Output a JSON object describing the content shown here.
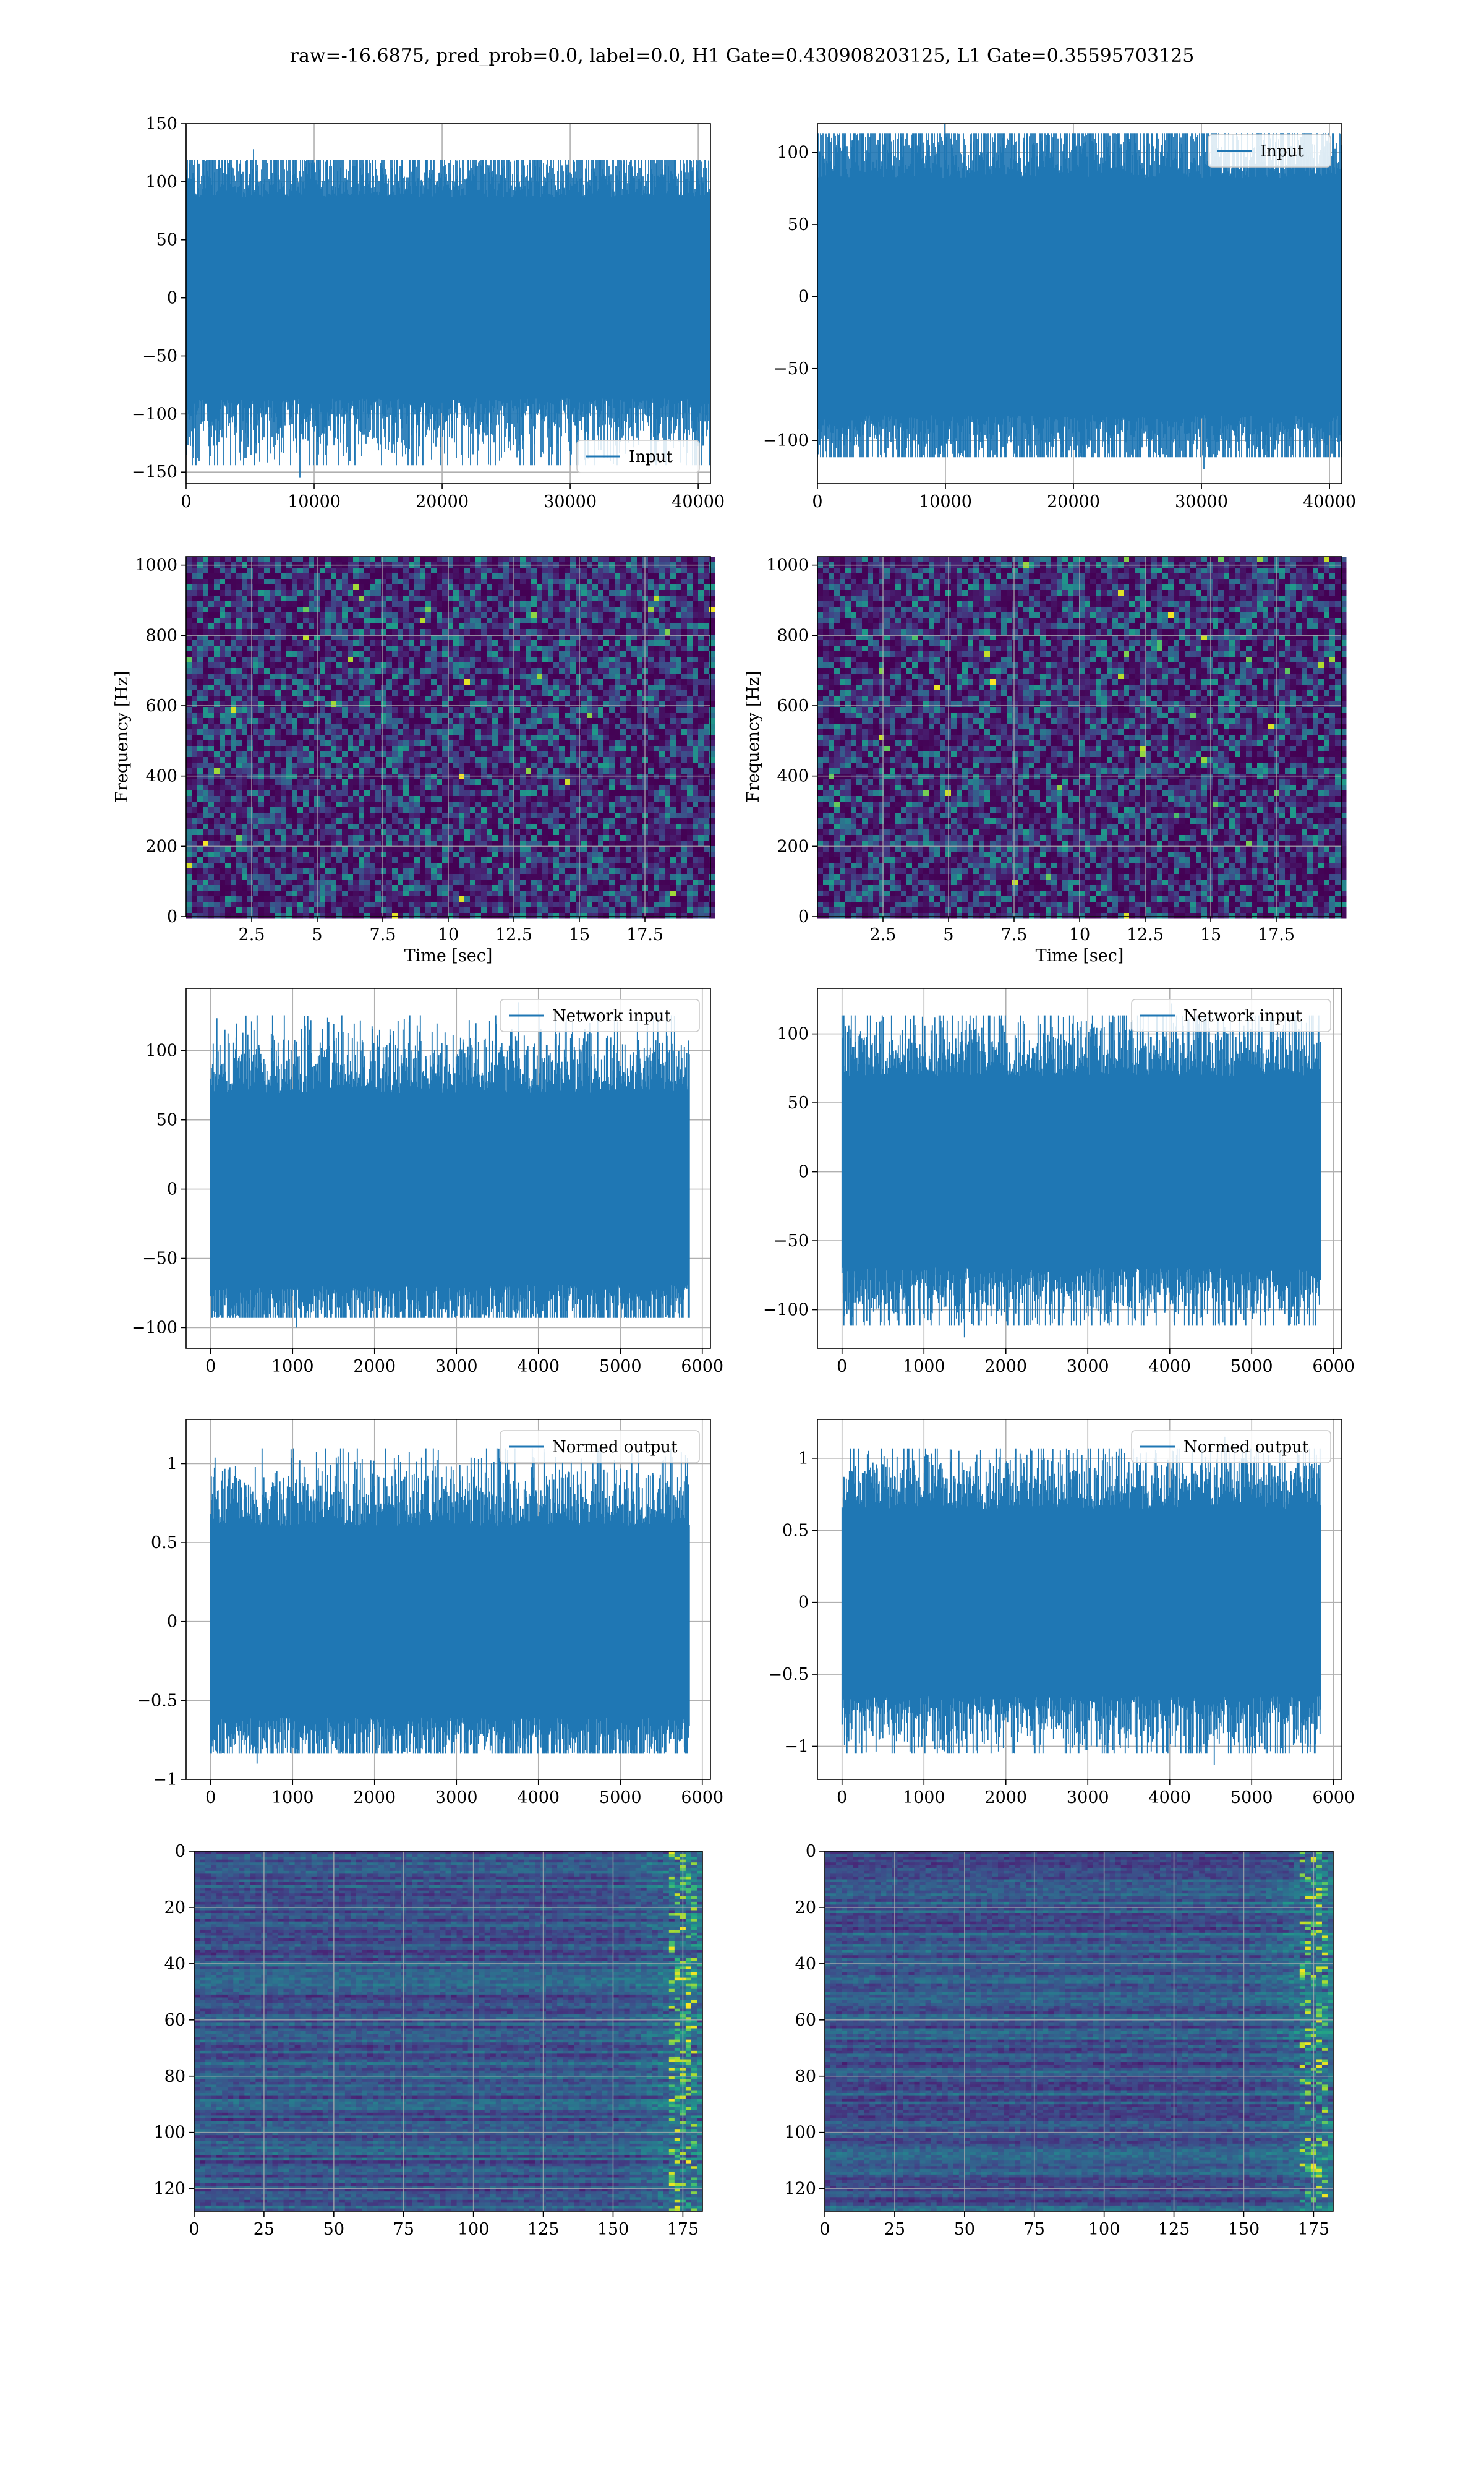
{
  "figure_title": "raw=-16.6875, pred_prob=0.0, label=0.0, H1 Gate=0.430908203125, L1 Gate=0.35595703125",
  "colors": {
    "series": "#1f77b4",
    "grid": "#b0b0b0",
    "spine": "#000000",
    "heat_low": "#440154",
    "heat_high": "#fde725"
  },
  "chart_data": [
    {
      "type": "line",
      "panel": "row1-left",
      "legend": [
        "Input"
      ],
      "legend_loc": "lower-right",
      "xlim": [
        0,
        40960
      ],
      "ylim": [
        -160,
        150
      ],
      "xticks": [
        0,
        10000,
        20000,
        30000,
        40000
      ],
      "yticks": [
        -150,
        -100,
        -50,
        0,
        50,
        100,
        150
      ],
      "series": [
        {
          "name": "Input",
          "n_points": 40960,
          "envelope": [
            -100,
            100
          ],
          "peaks": [
            -155,
            128
          ]
        }
      ]
    },
    {
      "type": "line",
      "panel": "row1-right",
      "legend": [
        "Input"
      ],
      "legend_loc": "upper-right",
      "xlim": [
        0,
        40960
      ],
      "ylim": [
        -130,
        120
      ],
      "xticks": [
        0,
        10000,
        20000,
        30000,
        40000
      ],
      "yticks": [
        -100,
        -50,
        0,
        50,
        100
      ],
      "series": [
        {
          "name": "Input",
          "n_points": 40960,
          "envelope": [
            -95,
            95
          ],
          "peaks": [
            -120,
            122
          ]
        }
      ]
    },
    {
      "type": "heatmap",
      "panel": "row2-left",
      "kind": "spectrogram",
      "xlabel": "Time [sec]",
      "ylabel": "Frequency [Hz]",
      "xlim": [
        0,
        20
      ],
      "ylim": [
        0,
        1024
      ],
      "xticks": [
        2.5,
        5.0,
        7.5,
        10.0,
        12.5,
        15.0,
        17.5
      ],
      "yticks": [
        0,
        200,
        400,
        600,
        800,
        1000
      ]
    },
    {
      "type": "heatmap",
      "panel": "row2-right",
      "kind": "spectrogram",
      "xlabel": "Time [sec]",
      "ylabel": "Frequency [Hz]",
      "xlim": [
        0,
        20
      ],
      "ylim": [
        0,
        1024
      ],
      "xticks": [
        2.5,
        5.0,
        7.5,
        10.0,
        12.5,
        15.0,
        17.5
      ],
      "yticks": [
        0,
        200,
        400,
        600,
        800,
        1000
      ]
    },
    {
      "type": "line",
      "panel": "row3-left",
      "legend": [
        "Network input"
      ],
      "legend_loc": "upper-right",
      "xlim": [
        -300,
        6100
      ],
      "ylim": [
        -115,
        145
      ],
      "xticks": [
        0,
        1000,
        2000,
        3000,
        4000,
        5000,
        6000
      ],
      "yticks": [
        -100,
        -50,
        0,
        50,
        100
      ],
      "series": [
        {
          "name": "Network input",
          "n_points": 5840,
          "envelope": [
            -80,
            80
          ],
          "peaks": [
            -100,
            135
          ]
        }
      ]
    },
    {
      "type": "line",
      "panel": "row3-right",
      "legend": [
        "Network input"
      ],
      "legend_loc": "upper-right",
      "xlim": [
        -300,
        6100
      ],
      "ylim": [
        -128,
        133
      ],
      "xticks": [
        0,
        1000,
        2000,
        3000,
        4000,
        5000,
        6000
      ],
      "yticks": [
        -100,
        -50,
        0,
        50,
        100
      ],
      "series": [
        {
          "name": "Network input",
          "n_points": 5840,
          "envelope": [
            -80,
            80
          ],
          "peaks": [
            -120,
            122
          ]
        }
      ]
    },
    {
      "type": "line",
      "panel": "row4-left",
      "legend": [
        "Normed output"
      ],
      "legend_loc": "upper-right",
      "xlim": [
        -300,
        6100
      ],
      "ylim": [
        -1.0,
        1.28
      ],
      "xticks": [
        0,
        1000,
        2000,
        3000,
        4000,
        5000,
        6000
      ],
      "yticks": [
        -1.0,
        -0.5,
        0.0,
        0.5,
        1.0
      ],
      "series": [
        {
          "name": "Normed output",
          "n_points": 5840,
          "envelope": [
            -0.7,
            0.7
          ],
          "peaks": [
            -0.9,
            1.18
          ]
        }
      ]
    },
    {
      "type": "line",
      "panel": "row4-right",
      "legend": [
        "Normed output"
      ],
      "legend_loc": "upper-right",
      "xlim": [
        -300,
        6100
      ],
      "ylim": [
        -1.23,
        1.27
      ],
      "xticks": [
        0,
        1000,
        2000,
        3000,
        4000,
        5000,
        6000
      ],
      "yticks": [
        -1.0,
        -0.5,
        0.0,
        0.5,
        1.0
      ],
      "series": [
        {
          "name": "Normed output",
          "n_points": 5840,
          "envelope": [
            -0.75,
            0.75
          ],
          "peaks": [
            -1.13,
            1.15
          ]
        }
      ]
    },
    {
      "type": "heatmap",
      "panel": "row5-left",
      "kind": "feature-map",
      "xlim": [
        0,
        182
      ],
      "ylim": [
        128,
        0
      ],
      "xticks": [
        0,
        25,
        50,
        75,
        100,
        125,
        150,
        175
      ],
      "yticks": [
        0,
        20,
        40,
        60,
        80,
        100,
        120
      ]
    },
    {
      "type": "heatmap",
      "panel": "row5-right",
      "kind": "feature-map",
      "xlim": [
        0,
        182
      ],
      "ylim": [
        128,
        0
      ],
      "xticks": [
        0,
        25,
        50,
        75,
        100,
        125,
        150,
        175
      ],
      "yticks": [
        0,
        20,
        40,
        60,
        80,
        100,
        120
      ]
    }
  ]
}
